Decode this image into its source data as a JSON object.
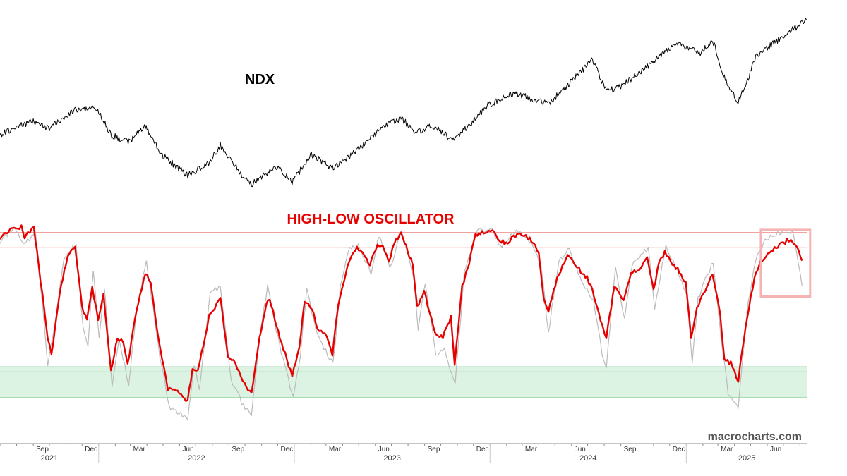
{
  "watermark": "macrocharts.com",
  "colors": {
    "price": "#000000",
    "oscillator": "#e60000",
    "oscillator_shadow": "#bbbbbb",
    "upper_band": "#f2a0a0",
    "lower_zone": "#dcf2e3",
    "lower_zone_line": "#9dd8ad",
    "highlight_box": "#f5b3b3",
    "axis": "#888888"
  },
  "chart_data": [
    {
      "type": "line",
      "title": "NDX",
      "x_labels": [
        "Sep",
        "Dec",
        "Mar",
        "Jun",
        "Sep",
        "Dec",
        "Mar",
        "Jun",
        "Sep",
        "Dec",
        "Mar",
        "Jun",
        "Sep",
        "Dec",
        "Mar",
        "Jun"
      ],
      "year_labels": [
        "2021",
        "2022",
        "2023",
        "2024",
        "2025"
      ],
      "x_range": [
        "2021-07-01",
        "2025-08-15"
      ],
      "y_scale": "unlabeled",
      "series": [
        {
          "points": [
            [
              "2021-07-01",
              14500
            ],
            [
              "2021-08-01",
              15200
            ],
            [
              "2021-09-01",
              15600
            ],
            [
              "2021-10-01",
              15050
            ],
            [
              "2021-11-15",
              16500
            ],
            [
              "2021-12-27",
              16700
            ],
            [
              "2022-01-25",
              14500
            ],
            [
              "2022-02-25",
              13900
            ],
            [
              "2022-03-29",
              15200
            ],
            [
              "2022-04-28",
              12900
            ],
            [
              "2022-06-16",
              11200
            ],
            [
              "2022-07-25",
              12200
            ],
            [
              "2022-08-16",
              13650
            ],
            [
              "2022-09-30",
              10950
            ],
            [
              "2022-10-13",
              10500
            ],
            [
              "2022-11-30",
              11950
            ],
            [
              "2022-12-28",
              10700
            ],
            [
              "2023-02-02",
              12900
            ],
            [
              "2023-03-13",
              11800
            ],
            [
              "2023-04-28",
              13250
            ],
            [
              "2023-06-15",
              15150
            ],
            [
              "2023-07-19",
              15850
            ],
            [
              "2023-08-18",
              14700
            ],
            [
              "2023-09-15",
              15300
            ],
            [
              "2023-10-26",
              14050
            ],
            [
              "2023-12-28",
              16900
            ],
            [
              "2024-02-15",
              17900
            ],
            [
              "2024-04-19",
              17000
            ],
            [
              "2024-07-10",
              20600
            ],
            [
              "2024-08-05",
              18000
            ],
            [
              "2024-09-06",
              18600
            ],
            [
              "2024-12-16",
              22000
            ],
            [
              "2025-01-27",
              21100
            ],
            [
              "2025-02-19",
              22200
            ],
            [
              "2025-03-13",
              19200
            ],
            [
              "2025-04-08",
              17100
            ],
            [
              "2025-05-12",
              20900
            ],
            [
              "2025-06-27",
              22400
            ],
            [
              "2025-08-13",
              23850
            ]
          ]
        }
      ]
    },
    {
      "type": "line",
      "title": "HIGH-LOW OSCILLATOR",
      "y_scale": "unlabeled",
      "ylim": [
        -1.3,
        1.05
      ],
      "upper_band_lines": [
        0.93,
        0.75
      ],
      "lower_zone": [
        -1.0,
        -0.64
      ],
      "lower_zone_line": -0.7,
      "highlight_box": {
        "x": [
          "2025-05-20",
          "2025-08-20"
        ],
        "y": [
          0.96,
          0.18
        ]
      },
      "series": [
        {
          "name": "",
          "role": "main",
          "points": [
            [
              "2021-07-01",
              0.85
            ],
            [
              "2021-07-20",
              0.96
            ],
            [
              "2021-08-10",
              0.99
            ],
            [
              "2021-08-16",
              0.85
            ],
            [
              "2021-08-22",
              0.92
            ],
            [
              "2021-09-02",
              0.98
            ],
            [
              "2021-09-08",
              0.7
            ],
            [
              "2021-09-18",
              0.2
            ],
            [
              "2021-09-28",
              -0.3
            ],
            [
              "2021-10-05",
              -0.5
            ],
            [
              "2021-10-20",
              0.2
            ],
            [
              "2021-11-04",
              0.65
            ],
            [
              "2021-11-18",
              0.75
            ],
            [
              "2021-12-01",
              0.05
            ],
            [
              "2021-12-10",
              -0.1
            ],
            [
              "2021-12-20",
              0.3
            ],
            [
              "2021-12-31",
              -0.1
            ],
            [
              "2022-01-10",
              0.2
            ],
            [
              "2022-01-24",
              -0.7
            ],
            [
              "2022-02-05",
              -0.3
            ],
            [
              "2022-02-16",
              -0.35
            ],
            [
              "2022-02-24",
              -0.62
            ],
            [
              "2022-03-10",
              -0.05
            ],
            [
              "2022-03-29",
              0.45
            ],
            [
              "2022-04-08",
              0.35
            ],
            [
              "2022-04-22",
              -0.3
            ],
            [
              "2022-05-10",
              -0.9
            ],
            [
              "2022-05-25",
              -0.92
            ],
            [
              "2022-06-16",
              -1.05
            ],
            [
              "2022-06-25",
              -0.65
            ],
            [
              "2022-07-05",
              -0.7
            ],
            [
              "2022-07-26",
              -0.05
            ],
            [
              "2022-08-16",
              0.15
            ],
            [
              "2022-08-30",
              -0.5
            ],
            [
              "2022-09-13",
              -0.6
            ],
            [
              "2022-09-30",
              -0.85
            ],
            [
              "2022-10-13",
              -0.95
            ],
            [
              "2022-10-28",
              -0.3
            ],
            [
              "2022-11-10",
              0.1
            ],
            [
              "2022-11-16",
              0.15
            ],
            [
              "2022-12-05",
              -0.3
            ],
            [
              "2022-12-28",
              -0.75
            ],
            [
              "2023-01-10",
              -0.4
            ],
            [
              "2023-01-20",
              0.1
            ],
            [
              "2023-02-03",
              0.05
            ],
            [
              "2023-02-13",
              -0.2
            ],
            [
              "2023-02-27",
              -0.25
            ],
            [
              "2023-03-13",
              -0.5
            ],
            [
              "2023-03-24",
              0.1
            ],
            [
              "2023-04-10",
              0.55
            ],
            [
              "2023-04-28",
              0.75
            ],
            [
              "2023-05-10",
              0.7
            ],
            [
              "2023-05-22",
              0.55
            ],
            [
              "2023-06-05",
              0.8
            ],
            [
              "2023-06-15",
              0.75
            ],
            [
              "2023-06-26",
              0.6
            ],
            [
              "2023-07-10",
              0.85
            ],
            [
              "2023-07-19",
              0.92
            ],
            [
              "2023-08-10",
              0.55
            ],
            [
              "2023-08-18",
              0.05
            ],
            [
              "2023-08-31",
              0.25
            ],
            [
              "2023-09-20",
              -0.25
            ],
            [
              "2023-10-05",
              -0.3
            ],
            [
              "2023-10-20",
              -0.05
            ],
            [
              "2023-10-27",
              -0.6
            ],
            [
              "2023-11-10",
              0.3
            ],
            [
              "2023-11-20",
              0.5
            ],
            [
              "2023-12-05",
              0.9
            ],
            [
              "2023-12-20",
              0.93
            ],
            [
              "2024-01-05",
              0.95
            ],
            [
              "2024-01-16",
              0.85
            ],
            [
              "2024-01-31",
              0.8
            ],
            [
              "2024-02-14",
              0.88
            ],
            [
              "2024-02-26",
              0.92
            ],
            [
              "2024-03-15",
              0.85
            ],
            [
              "2024-04-01",
              0.7
            ],
            [
              "2024-04-10",
              0.15
            ],
            [
              "2024-04-19",
              0.0
            ],
            [
              "2024-05-05",
              0.4
            ],
            [
              "2024-05-25",
              0.65
            ],
            [
              "2024-06-15",
              0.5
            ],
            [
              "2024-06-30",
              0.4
            ],
            [
              "2024-07-10",
              0.25
            ],
            [
              "2024-07-25",
              -0.1
            ],
            [
              "2024-08-05",
              -0.3
            ],
            [
              "2024-08-20",
              0.3
            ],
            [
              "2024-09-06",
              0.15
            ],
            [
              "2024-09-20",
              0.45
            ],
            [
              "2024-10-05",
              0.5
            ],
            [
              "2024-10-20",
              0.65
            ],
            [
              "2024-11-01",
              0.25
            ],
            [
              "2024-11-12",
              0.6
            ],
            [
              "2024-11-22",
              0.7
            ],
            [
              "2024-12-06",
              0.55
            ],
            [
              "2024-12-16",
              0.5
            ],
            [
              "2024-12-31",
              0.35
            ],
            [
              "2025-01-10",
              -0.3
            ],
            [
              "2025-01-21",
              0.05
            ],
            [
              "2025-02-05",
              0.25
            ],
            [
              "2025-02-19",
              0.45
            ],
            [
              "2025-03-05",
              0.0
            ],
            [
              "2025-03-13",
              -0.55
            ],
            [
              "2025-03-25",
              -0.6
            ],
            [
              "2025-04-08",
              -0.8
            ],
            [
              "2025-04-22",
              -0.15
            ],
            [
              "2025-05-08",
              0.4
            ],
            [
              "2025-05-20",
              0.6
            ],
            [
              "2025-06-05",
              0.7
            ],
            [
              "2025-06-27",
              0.8
            ],
            [
              "2025-07-15",
              0.85
            ],
            [
              "2025-07-24",
              0.78
            ],
            [
              "2025-08-05",
              0.6
            ]
          ]
        },
        {
          "name": "",
          "role": "shadow",
          "points": [
            [
              "2021-07-01",
              0.8
            ],
            [
              "2021-07-25",
              0.98
            ],
            [
              "2021-08-18",
              0.8
            ],
            [
              "2021-09-05",
              0.95
            ],
            [
              "2021-09-15",
              0.3
            ],
            [
              "2021-09-28",
              -0.6
            ],
            [
              "2021-10-10",
              -0.2
            ],
            [
              "2021-10-28",
              0.6
            ],
            [
              "2021-11-20",
              0.8
            ],
            [
              "2021-12-03",
              -0.2
            ],
            [
              "2021-12-12",
              -0.4
            ],
            [
              "2021-12-22",
              0.5
            ],
            [
              "2022-01-02",
              -0.3
            ],
            [
              "2022-01-12",
              0.3
            ],
            [
              "2022-01-26",
              -0.9
            ],
            [
              "2022-02-08",
              -0.3
            ],
            [
              "2022-02-26",
              -0.85
            ],
            [
              "2022-03-12",
              0.0
            ],
            [
              "2022-03-31",
              0.6
            ],
            [
              "2022-04-25",
              -0.5
            ],
            [
              "2022-05-12",
              -1.1
            ],
            [
              "2022-06-16",
              -1.25
            ],
            [
              "2022-06-28",
              -0.6
            ],
            [
              "2022-07-08",
              -0.9
            ],
            [
              "2022-07-28",
              0.2
            ],
            [
              "2022-08-16",
              0.3
            ],
            [
              "2022-09-05",
              -0.8
            ],
            [
              "2022-09-28",
              -1.1
            ],
            [
              "2022-10-13",
              -1.2
            ],
            [
              "2022-10-30",
              -0.2
            ],
            [
              "2022-11-12",
              0.3
            ],
            [
              "2022-12-08",
              -0.5
            ],
            [
              "2022-12-30",
              -1.0
            ],
            [
              "2023-01-12",
              -0.5
            ],
            [
              "2023-01-24",
              0.25
            ],
            [
              "2023-02-15",
              -0.3
            ],
            [
              "2023-03-14",
              -0.6
            ],
            [
              "2023-03-28",
              0.3
            ],
            [
              "2023-04-14",
              0.75
            ],
            [
              "2023-04-30",
              0.8
            ],
            [
              "2023-05-24",
              0.45
            ],
            [
              "2023-06-08",
              0.9
            ],
            [
              "2023-06-28",
              0.5
            ],
            [
              "2023-07-20",
              0.95
            ],
            [
              "2023-08-12",
              0.4
            ],
            [
              "2023-08-20",
              -0.2
            ],
            [
              "2023-09-02",
              0.35
            ],
            [
              "2023-09-22",
              -0.5
            ],
            [
              "2023-10-08",
              -0.45
            ],
            [
              "2023-10-28",
              -0.85
            ],
            [
              "2023-11-14",
              0.45
            ],
            [
              "2023-12-08",
              0.95
            ],
            [
              "2024-01-05",
              0.97
            ],
            [
              "2024-01-20",
              0.75
            ],
            [
              "2024-02-16",
              0.95
            ],
            [
              "2024-03-18",
              0.82
            ],
            [
              "2024-04-05",
              0.55
            ],
            [
              "2024-04-19",
              -0.25
            ],
            [
              "2024-05-08",
              0.6
            ],
            [
              "2024-05-28",
              0.75
            ],
            [
              "2024-06-20",
              0.35
            ],
            [
              "2024-07-12",
              0.15
            ],
            [
              "2024-07-28",
              -0.5
            ],
            [
              "2024-08-05",
              -0.65
            ],
            [
              "2024-08-22",
              0.55
            ],
            [
              "2024-09-08",
              -0.1
            ],
            [
              "2024-09-22",
              0.55
            ],
            [
              "2024-10-22",
              0.75
            ],
            [
              "2024-11-03",
              0.05
            ],
            [
              "2024-11-24",
              0.78
            ],
            [
              "2024-12-18",
              0.45
            ],
            [
              "2025-01-02",
              0.2
            ],
            [
              "2025-01-12",
              -0.6
            ],
            [
              "2025-01-23",
              0.15
            ],
            [
              "2025-02-20",
              0.6
            ],
            [
              "2025-03-07",
              -0.3
            ],
            [
              "2025-03-20",
              -0.95
            ],
            [
              "2025-04-08",
              -1.1
            ],
            [
              "2025-04-24",
              0.0
            ],
            [
              "2025-05-10",
              0.6
            ],
            [
              "2025-05-25",
              0.8
            ],
            [
              "2025-06-10",
              0.9
            ],
            [
              "2025-07-01",
              0.95
            ],
            [
              "2025-07-20",
              0.92
            ],
            [
              "2025-08-05",
              0.3
            ]
          ]
        }
      ]
    }
  ]
}
